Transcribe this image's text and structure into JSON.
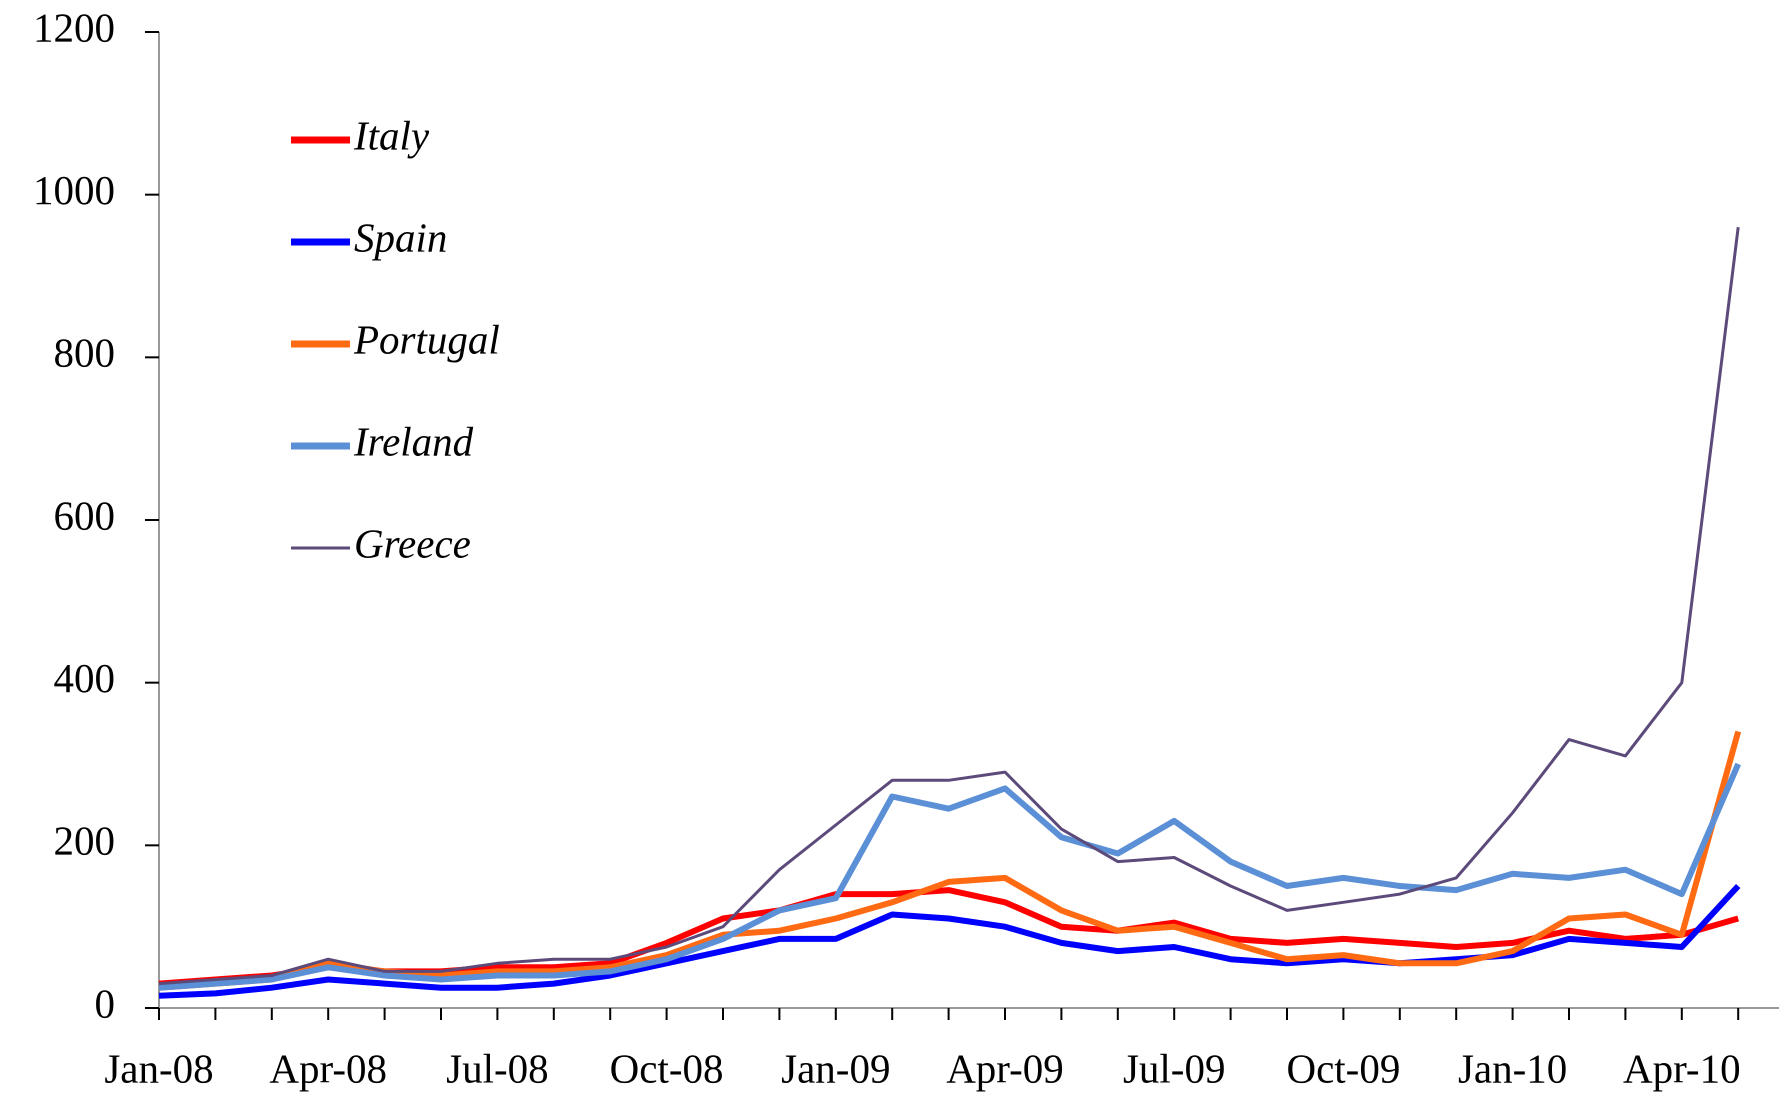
{
  "chart_data": {
    "type": "line",
    "x": [
      "Jan-08",
      "Feb-08",
      "Mar-08",
      "Apr-08",
      "May-08",
      "Jun-08",
      "Jul-08",
      "Aug-08",
      "Sep-08",
      "Oct-08",
      "Nov-08",
      "Dec-08",
      "Jan-09",
      "Feb-09",
      "Mar-09",
      "Apr-09",
      "May-09",
      "Jun-09",
      "Jul-09",
      "Aug-09",
      "Sep-09",
      "Oct-09",
      "Nov-09",
      "Dec-09",
      "Jan-10",
      "Feb-10",
      "Mar-10",
      "Apr-10",
      "May-10"
    ],
    "xticks": [
      "Jan-08",
      "Apr-08",
      "Jul-08",
      "Oct-08",
      "Jan-09",
      "Apr-09",
      "Jul-09",
      "Oct-09",
      "Jan-10",
      "Apr-10"
    ],
    "ylim": [
      0,
      1200
    ],
    "yticks": [
      0,
      200,
      400,
      600,
      800,
      1000,
      1200
    ],
    "series": [
      {
        "name": "Italy",
        "color": "#ff0000",
        "values": [
          30,
          35,
          40,
          50,
          45,
          45,
          50,
          50,
          55,
          80,
          110,
          120,
          140,
          140,
          145,
          130,
          100,
          95,
          105,
          85,
          80,
          85,
          80,
          75,
          80,
          95,
          85,
          90,
          110
        ]
      },
      {
        "name": "Spain",
        "color": "#0000ff",
        "values": [
          15,
          18,
          25,
          35,
          30,
          25,
          25,
          30,
          40,
          55,
          70,
          85,
          85,
          115,
          110,
          100,
          80,
          70,
          75,
          60,
          55,
          60,
          55,
          60,
          65,
          85,
          80,
          75,
          150
        ]
      },
      {
        "name": "Portugal",
        "color": "#ff6a13",
        "values": [
          25,
          30,
          35,
          55,
          45,
          40,
          45,
          45,
          50,
          65,
          90,
          95,
          110,
          130,
          155,
          160,
          120,
          95,
          100,
          80,
          60,
          65,
          55,
          55,
          70,
          110,
          115,
          90,
          340
        ]
      },
      {
        "name": "Ireland",
        "color": "#5b8fd6",
        "values": [
          25,
          30,
          35,
          50,
          40,
          35,
          40,
          40,
          45,
          60,
          85,
          120,
          135,
          260,
          245,
          270,
          210,
          190,
          230,
          180,
          150,
          160,
          150,
          145,
          165,
          160,
          170,
          140,
          300
        ]
      },
      {
        "name": "Greece",
        "color": "#5b4a7a",
        "values": [
          30,
          35,
          40,
          60,
          45,
          45,
          55,
          60,
          60,
          75,
          100,
          170,
          225,
          280,
          280,
          290,
          220,
          180,
          185,
          150,
          120,
          130,
          140,
          160,
          240,
          330,
          310,
          400,
          960
        ]
      }
    ]
  }
}
